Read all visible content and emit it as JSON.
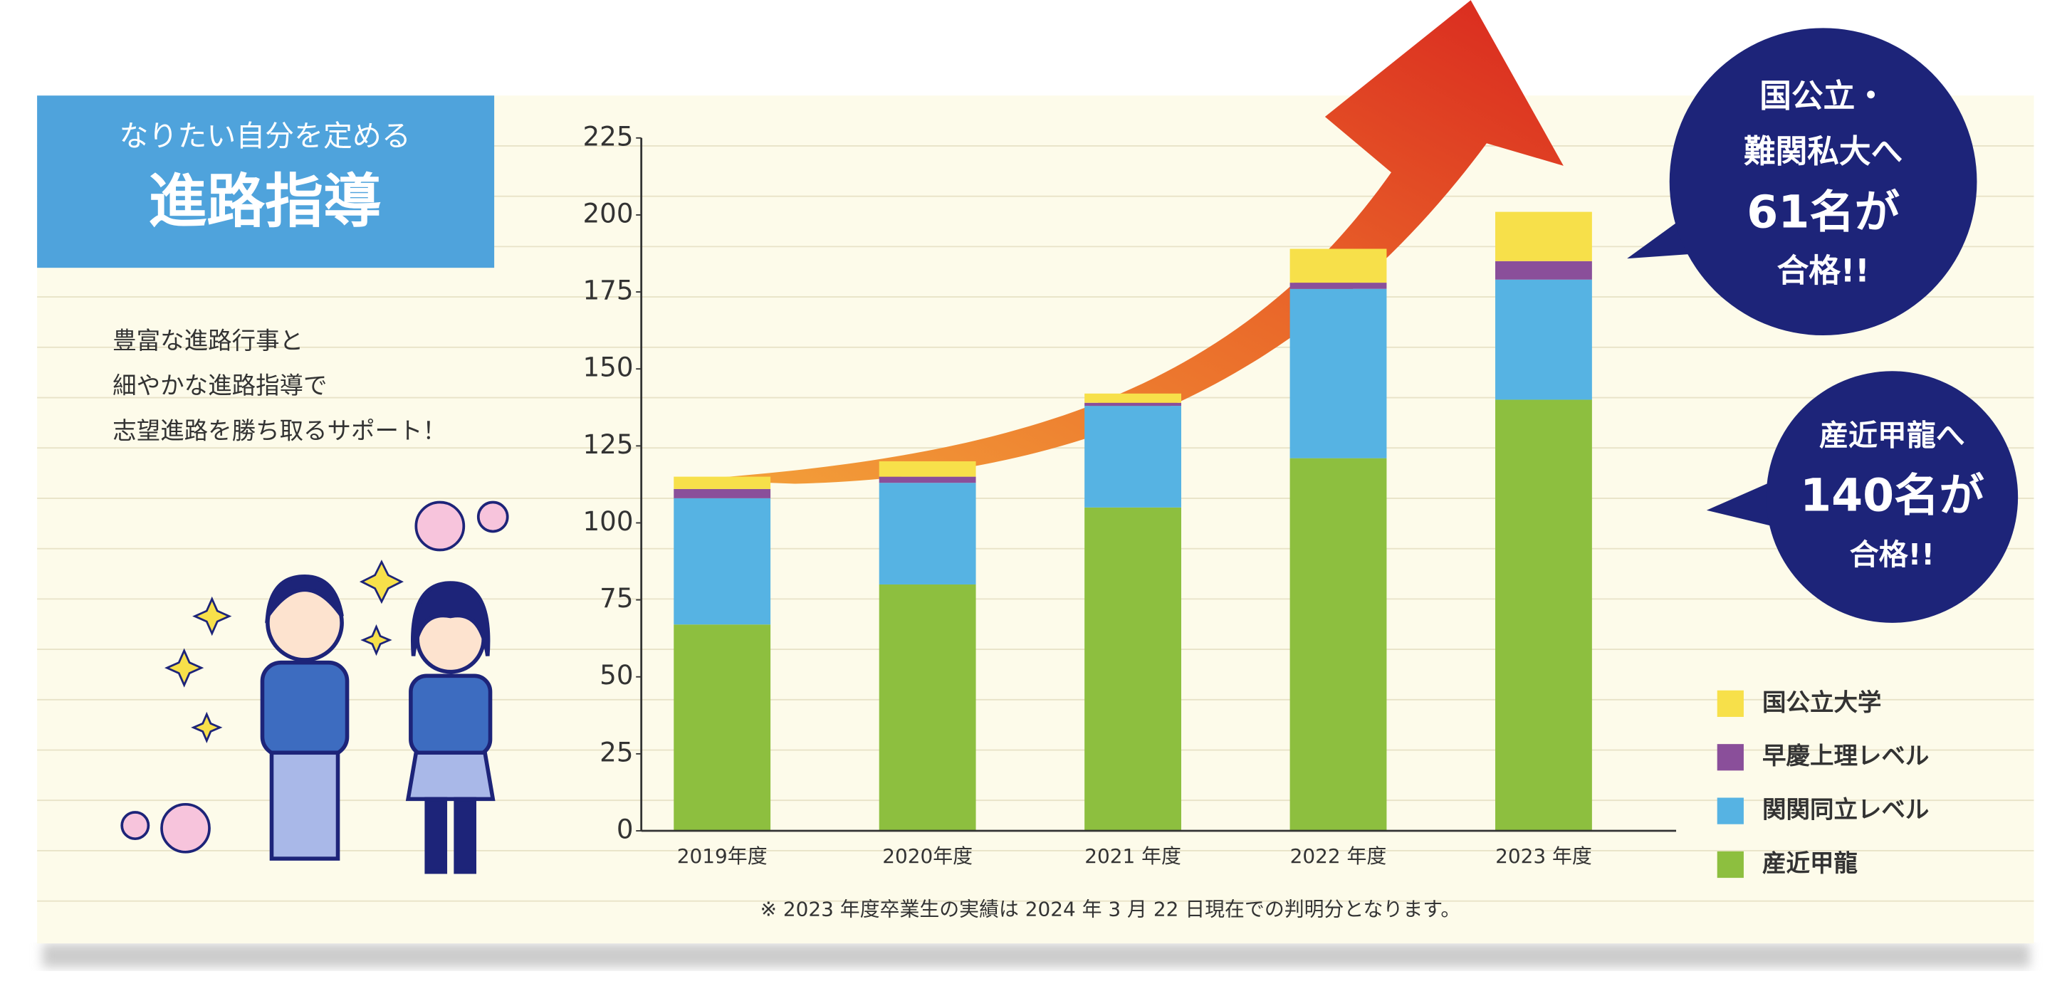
{
  "header": {
    "subtitle": "なりたい自分を定める",
    "title": "進路指導"
  },
  "description": [
    "豊富な進路行事と",
    "細やかな進路指導で",
    "志望進路を勝ち取るサポート！"
  ],
  "callouts": [
    {
      "lines": [
        "国公立・",
        "難関私大へ",
        "61名が",
        "合格!!"
      ]
    },
    {
      "lines": [
        "産近甲龍へ",
        "140名が",
        "合格!!"
      ]
    }
  ],
  "chart_data": {
    "type": "stacked-bar",
    "categories": [
      "2019年度",
      "2020年度",
      "2021 年度",
      "2022 年度",
      "2023 年度"
    ],
    "series": [
      {
        "name": "産近甲龍",
        "color": "#8dbf3f",
        "values": [
          67,
          80,
          105,
          121,
          140
        ]
      },
      {
        "name": "関関同立レベル",
        "color": "#56b3e3",
        "values": [
          41,
          33,
          33,
          55,
          39
        ]
      },
      {
        "name": "早慶上理レベル",
        "color": "#8a4f9a",
        "values": [
          3,
          2,
          1,
          2,
          6
        ]
      },
      {
        "name": "国公立大学",
        "color": "#f7e04a",
        "values": [
          4,
          5,
          3,
          11,
          16
        ]
      }
    ],
    "ylim": [
      0,
      225
    ],
    "yticks": [
      0,
      25,
      50,
      75,
      100,
      125,
      150,
      175,
      200,
      225
    ],
    "legend": "right",
    "note": "※ 2023 年度卒業生の実績は 2024 年 3 月 22 日現在での判明分となります。"
  }
}
